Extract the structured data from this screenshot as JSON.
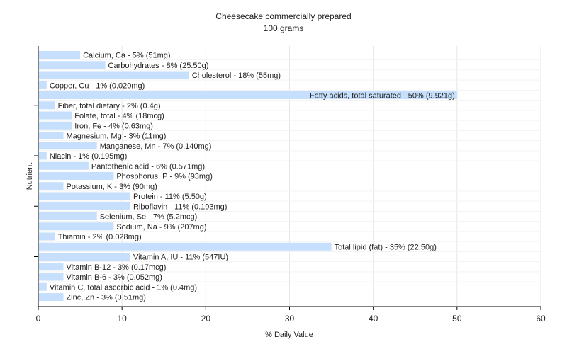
{
  "chart_data": {
    "type": "bar",
    "orientation": "horizontal",
    "title": "Cheesecake commercially prepared",
    "subtitle": "100 grams",
    "xlabel": "% Daily Value",
    "ylabel": "Nutrient",
    "xlim": [
      0,
      60
    ],
    "xticks": [
      "0",
      "10",
      "20",
      "30",
      "40",
      "50",
      "60"
    ],
    "grid": true,
    "bar_color": "#c6dffc",
    "categories": [
      "Calcium, Ca",
      "Carbohydrates",
      "Cholesterol",
      "Copper, Cu",
      "Fatty acids, total saturated",
      "Fiber, total dietary",
      "Folate, total",
      "Iron, Fe",
      "Magnesium, Mg",
      "Manganese, Mn",
      "Niacin",
      "Pantothenic acid",
      "Phosphorus, P",
      "Potassium, K",
      "Protein",
      "Riboflavin",
      "Selenium, Se",
      "Sodium, Na",
      "Thiamin",
      "Total lipid (fat)",
      "Vitamin A, IU",
      "Vitamin B-12",
      "Vitamin B-6",
      "Vitamin C, total ascorbic acid",
      "Zinc, Zn"
    ],
    "values": [
      5,
      8,
      18,
      1,
      50,
      2,
      4,
      4,
      3,
      7,
      1,
      6,
      9,
      3,
      11,
      11,
      7,
      9,
      2,
      35,
      11,
      3,
      3,
      1,
      3
    ],
    "labels": [
      "Calcium, Ca - 5% (51mg)",
      "Carbohydrates - 8% (25.50g)",
      "Cholesterol - 18% (55mg)",
      "Copper, Cu - 1% (0.020mg)",
      "Fatty acids, total saturated - 50% (9.921g)",
      "Fiber, total dietary - 2% (0.4g)",
      "Folate, total - 4% (18mcg)",
      "Iron, Fe - 4% (0.63mg)",
      "Magnesium, Mg - 3% (11mg)",
      "Manganese, Mn - 7% (0.140mg)",
      "Niacin - 1% (0.195mg)",
      "Pantothenic acid - 6% (0.571mg)",
      "Phosphorus, P - 9% (93mg)",
      "Potassium, K - 3% (90mg)",
      "Protein - 11% (5.50g)",
      "Riboflavin - 11% (0.193mg)",
      "Selenium, Se - 7% (5.2mcg)",
      "Sodium, Na - 9% (207mg)",
      "Thiamin - 2% (0.028mg)",
      "Total lipid (fat) - 35% (22.50g)",
      "Vitamin A, IU - 11% (547IU)",
      "Vitamin B-12 - 3% (0.17mcg)",
      "Vitamin B-6 - 3% (0.052mg)",
      "Vitamin C, total ascorbic acid - 1% (0.4mg)",
      "Zinc, Zn - 3% (0.51mg)"
    ]
  }
}
